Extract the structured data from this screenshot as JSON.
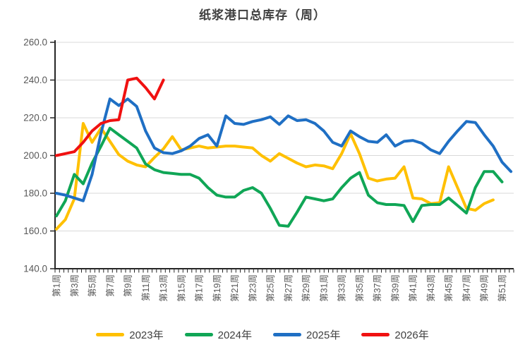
{
  "title": "纸浆港口总库存（周）",
  "chart_data": {
    "type": "line",
    "title": "纸浆港口总库存（周）",
    "ylabel": "",
    "xlabel": "",
    "ylim": [
      140,
      260
    ],
    "ytick_step": 20,
    "ytick_labels": [
      "140.0",
      "160.0",
      "180.0",
      "200.0",
      "220.0",
      "240.0",
      "260.0"
    ],
    "x_unit_weeks": 52,
    "xtick_labels": [
      "第1周",
      "第3周",
      "第5周",
      "第7周",
      "第9周",
      "第11周",
      "第13周",
      "第15周",
      "第17周",
      "第19周",
      "第21周",
      "第23周",
      "第25周",
      "第27周",
      "第29周",
      "第31周",
      "第33周",
      "第35周",
      "第37周",
      "第39周",
      "第41周",
      "第43周",
      "第45周",
      "第47周",
      "第49周",
      "第51周"
    ],
    "grid": "horizontal",
    "legend_position": "bottom",
    "axis_color": "#262626",
    "grid_color": "#d9d9d9",
    "tick_label_color": "#595959",
    "series": [
      {
        "name": "2023年",
        "color": "#FFC000",
        "start_week": 1,
        "values": [
          161,
          166,
          177,
          217,
          207,
          214.5,
          207.5,
          200.5,
          197,
          195,
          194,
          199,
          203.5,
          210,
          203,
          204,
          205,
          204,
          204.5,
          205,
          205,
          204.5,
          204,
          200,
          197,
          201,
          198.5,
          196,
          194,
          195,
          194.5,
          193,
          201,
          211.5,
          201,
          188,
          186.5,
          187.5,
          188,
          194,
          177.5,
          177,
          174.5,
          175,
          194,
          183,
          172,
          171,
          174.5,
          176.5
        ]
      },
      {
        "name": "2024年",
        "color": "#10A656",
        "start_week": 1,
        "values": [
          168,
          176,
          190,
          185,
          196,
          205,
          214.5,
          211,
          207.5,
          204,
          195.5,
          192.5,
          191,
          190.5,
          190,
          190,
          188,
          183,
          179,
          178,
          178,
          181.5,
          183,
          180,
          172,
          163,
          162.5,
          170,
          178,
          177,
          176,
          177,
          183,
          188,
          191,
          179,
          175,
          174,
          174,
          173.5,
          165,
          173.5,
          174,
          174,
          177.5,
          173.5,
          169.5,
          183,
          191.5,
          191.5,
          186
        ]
      },
      {
        "name": "2025年",
        "color": "#1F6FC4",
        "start_week": 1,
        "values": [
          180,
          179,
          177.5,
          176,
          190,
          212,
          230,
          226.5,
          230,
          226,
          213,
          204,
          201.5,
          201,
          202.5,
          205,
          209,
          211,
          205,
          221,
          217,
          216.5,
          218,
          219,
          220.5,
          216.5,
          221,
          218.5,
          219,
          217,
          213,
          207,
          205,
          213,
          210,
          207.5,
          207,
          211,
          205,
          207.5,
          208,
          206.5,
          203,
          201,
          207.5,
          213,
          218,
          217.5,
          211,
          205,
          196.5,
          191.5
        ]
      },
      {
        "name": "2026年",
        "color": "#F01111",
        "start_week": 1,
        "values": [
          200,
          201,
          202,
          207,
          213,
          217,
          218.5,
          219,
          240,
          241,
          236,
          230,
          240
        ]
      }
    ]
  },
  "legend": [
    {
      "label": "2023年",
      "color": "#FFC000"
    },
    {
      "label": "2024年",
      "color": "#10A656"
    },
    {
      "label": "2025年",
      "color": "#1F6FC4"
    },
    {
      "label": "2026年",
      "color": "#F01111"
    }
  ]
}
